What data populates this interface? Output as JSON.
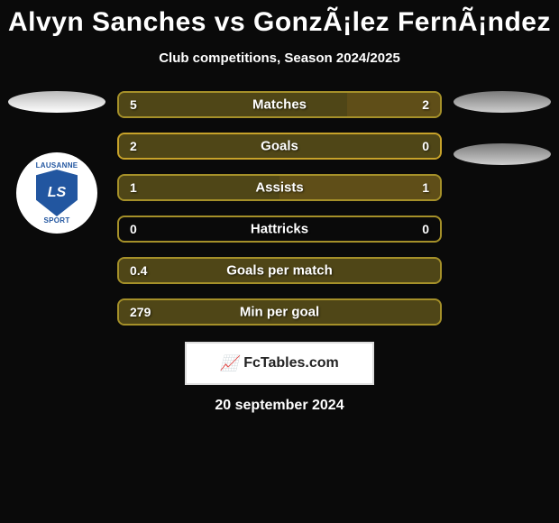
{
  "title": "Alvyn Sanches vs GonzÃ¡lez FernÃ¡ndez",
  "subtitle": "Club competitions, Season 2024/2025",
  "footer_brand": "FcTables.com",
  "footer_date": "20 september 2024",
  "logo": {
    "top_text": "LAUSANNE",
    "bottom_text": "SPORT",
    "initials": "LS"
  },
  "colors": {
    "left": "#a59029",
    "right": "#c7a22a",
    "border_default": "#a59029",
    "background": "#0a0a0a"
  },
  "bars": [
    {
      "label": "Matches",
      "left": "5",
      "right": "2",
      "left_pct": 71,
      "right_pct": 29,
      "border": "#a59029"
    },
    {
      "label": "Goals",
      "left": "2",
      "right": "0",
      "left_pct": 100,
      "right_pct": 0,
      "border": "#c7a22a"
    },
    {
      "label": "Assists",
      "left": "1",
      "right": "1",
      "left_pct": 50,
      "right_pct": 50,
      "border": "#a59029"
    },
    {
      "label": "Hattricks",
      "left": "0",
      "right": "0",
      "left_pct": 0,
      "right_pct": 0,
      "border": "#a59029"
    },
    {
      "label": "Goals per match",
      "left": "0.4",
      "right": "",
      "left_pct": 100,
      "right_pct": 0,
      "border": "#a59029"
    },
    {
      "label": "Min per goal",
      "left": "279",
      "right": "",
      "left_pct": 100,
      "right_pct": 0,
      "border": "#a59029"
    }
  ]
}
